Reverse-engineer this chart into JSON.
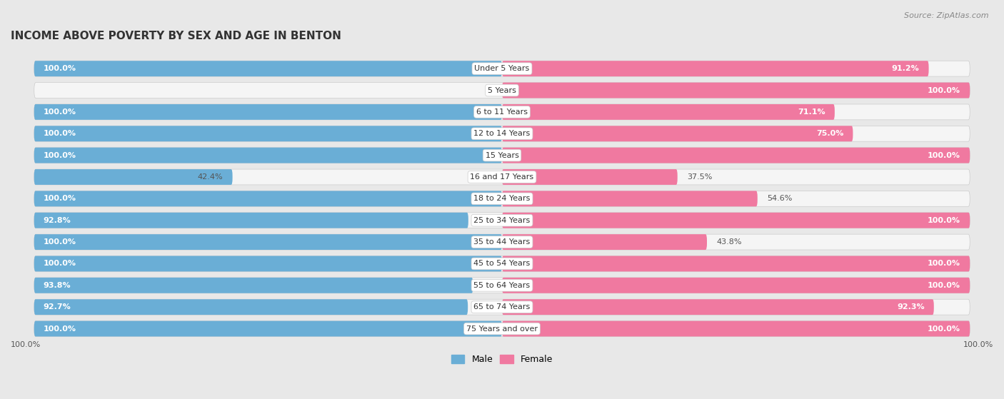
{
  "title": "INCOME ABOVE POVERTY BY SEX AND AGE IN BENTON",
  "source": "Source: ZipAtlas.com",
  "categories": [
    "Under 5 Years",
    "5 Years",
    "6 to 11 Years",
    "12 to 14 Years",
    "15 Years",
    "16 and 17 Years",
    "18 to 24 Years",
    "25 to 34 Years",
    "35 to 44 Years",
    "45 to 54 Years",
    "55 to 64 Years",
    "65 to 74 Years",
    "75 Years and over"
  ],
  "male_values": [
    100.0,
    0.0,
    100.0,
    100.0,
    100.0,
    42.4,
    100.0,
    92.8,
    100.0,
    100.0,
    93.8,
    92.7,
    100.0
  ],
  "female_values": [
    91.2,
    100.0,
    71.1,
    75.0,
    100.0,
    37.5,
    54.6,
    100.0,
    43.8,
    100.0,
    100.0,
    92.3,
    100.0
  ],
  "male_color": "#6aaed6",
  "female_color": "#f079a0",
  "male_label": "Male",
  "female_label": "Female",
  "background_color": "#e8e8e8",
  "bar_background": "#d8d8d8",
  "row_bg": "#f5f5f5",
  "title_fontsize": 11,
  "label_fontsize": 8,
  "value_fontsize": 8,
  "source_fontsize": 8
}
